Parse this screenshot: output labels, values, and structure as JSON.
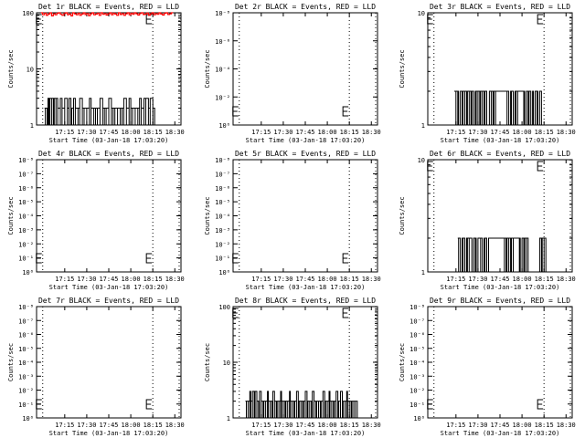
{
  "chart_data": [
    {
      "type": "line",
      "title": "Det 1r BLACK = Events, RED = LLD",
      "xlabel": "Start Time (03-Jan-18 17:03:20)",
      "ylabel": "Counts/sec",
      "x_ticks": [
        "17:15",
        "17:30",
        "17:45",
        "18:00",
        "18:15",
        "18:30"
      ],
      "y_scale": "log",
      "y_ticks": [
        "1",
        "10",
        "100"
      ],
      "ylim": [
        1,
        100
      ],
      "series": [
        {
          "color": "#000000",
          "x": [
            17.02,
            17.03,
            17.05,
            17.06,
            17.07,
            17.08,
            17.1,
            17.12,
            17.13,
            17.15,
            17.17,
            17.2,
            17.22,
            17.25,
            17.28,
            17.3,
            17.32,
            17.33,
            17.35,
            17.37,
            17.4,
            17.42,
            17.45,
            17.47,
            17.5,
            17.53,
            17.55,
            17.58,
            17.6,
            17.62,
            17.65,
            17.68,
            17.7,
            17.72,
            17.75,
            17.78,
            17.8,
            17.82,
            17.85,
            17.88,
            17.9,
            17.92,
            17.95,
            17.98,
            18.0,
            18.02,
            18.05,
            18.08,
            18.1,
            18.12,
            18.15,
            18.17,
            18.2,
            18.22,
            18.25
          ],
          "values": [
            2,
            2,
            2,
            3,
            3,
            3,
            3,
            3,
            3,
            3,
            2,
            3,
            2,
            3,
            2,
            3,
            2,
            2,
            3,
            2,
            2,
            3,
            2,
            2,
            2,
            3,
            2,
            2,
            2,
            2,
            3,
            2,
            2,
            2,
            3,
            2,
            2,
            2,
            2,
            2,
            2,
            3,
            2,
            3,
            2,
            2,
            2,
            2,
            3,
            2,
            3,
            3,
            2,
            3,
            2
          ]
        },
        {
          "color": "#ff0000",
          "x": [
            16.98,
            17.0,
            17.02,
            17.04,
            17.06,
            17.08,
            17.1,
            17.12,
            17.14,
            17.16,
            17.18,
            17.2,
            17.22,
            17.24,
            17.26,
            17.28,
            17.3,
            17.32,
            17.34,
            17.36,
            17.38,
            17.4,
            17.42,
            17.44,
            17.46,
            17.48,
            17.5,
            17.52,
            17.54,
            17.56,
            17.58,
            17.6,
            17.62,
            17.64,
            17.66,
            17.68,
            17.7,
            17.72,
            17.74,
            17.76,
            17.78,
            17.8,
            17.82,
            17.84,
            17.86,
            17.88,
            17.9,
            17.92,
            17.94,
            17.96,
            17.98,
            18.0,
            18.02,
            18.04,
            18.06,
            18.08,
            18.1,
            18.12,
            18.14,
            18.16,
            18.18,
            18.2,
            18.22,
            18.24,
            18.26,
            18.28,
            18.3,
            18.32,
            18.34,
            18.36,
            18.38,
            18.4,
            18.42,
            18.44,
            18.46
          ],
          "values": [
            100,
            92,
            98,
            90,
            95,
            100,
            88,
            96,
            92,
            98,
            100,
            94,
            90,
            97,
            100,
            92,
            95,
            88,
            100,
            96,
            92,
            98,
            90,
            95,
            100,
            93,
            97,
            89,
            96,
            100,
            92,
            95,
            98,
            90,
            100,
            94,
            97,
            91,
            96,
            100,
            92,
            98,
            95,
            90,
            100,
            93,
            97,
            90,
            96,
            100,
            92,
            98,
            94,
            100,
            96,
            91,
            97,
            100,
            93,
            95,
            99,
            90,
            96,
            100,
            92,
            97,
            94,
            100,
            95,
            91,
            98,
            100,
            93,
            96,
            100
          ]
        }
      ]
    },
    {
      "type": "line",
      "title": "Det 2r BLACK = Events, RED = LLD",
      "xlabel": "Start Time (03-Jan-18 17:03:20)",
      "ylabel": "Counts/sec",
      "x_ticks": [
        "17:15",
        "17:30",
        "17:45",
        "18:00",
        "18:15",
        "18:30"
      ],
      "y_scale": "log",
      "y_ticks": [
        "10⁰",
        "10⁻²",
        "10⁻⁴",
        "10⁻⁶",
        "10⁻⁸"
      ],
      "series": []
    },
    {
      "type": "line",
      "title": "Det 3r BLACK = Events, RED = LLD",
      "xlabel": "Start Time (03-Jan-18 17:03:20)",
      "ylabel": "Counts/sec",
      "x_ticks": [
        "17:15",
        "17:30",
        "17:45",
        "18:00",
        "18:15",
        "18:30"
      ],
      "y_scale": "log",
      "y_ticks": [
        "1",
        "10"
      ],
      "ylim": [
        1,
        10
      ],
      "series": [
        {
          "color": "#000000",
          "x": [
            17.23,
            17.25,
            17.27,
            17.28,
            17.3,
            17.32,
            17.33,
            17.35,
            17.37,
            17.38,
            17.4,
            17.42,
            17.43,
            17.45,
            17.47,
            17.48,
            17.5,
            17.52,
            17.53,
            17.55,
            17.57,
            17.58,
            17.6,
            17.63,
            17.65,
            17.67,
            17.68,
            17.7,
            17.83,
            17.85,
            17.87,
            17.88,
            17.9,
            17.92,
            17.93,
            17.95,
            18.02,
            18.03,
            18.05,
            18.07,
            18.08,
            18.1,
            18.12,
            18.13,
            18.15,
            18.17,
            18.18,
            18.2
          ],
          "values": [
            2,
            2,
            2,
            1,
            2,
            1,
            2,
            2,
            1,
            2,
            2,
            1,
            2,
            1,
            2,
            2,
            2,
            1,
            2,
            2,
            1,
            2,
            1,
            2,
            2,
            1,
            2,
            2,
            2,
            1,
            2,
            2,
            1,
            2,
            2,
            2,
            2,
            1,
            2,
            2,
            2,
            1,
            2,
            1,
            2,
            2,
            1,
            2
          ]
        }
      ]
    },
    {
      "type": "line",
      "title": "Det 4r BLACK = Events, RED = LLD",
      "xlabel": "Start Time (03-Jan-18 17:03:20)",
      "ylabel": "Counts/sec",
      "x_ticks": [
        "17:15",
        "17:30",
        "17:45",
        "18:00",
        "18:15",
        "18:30"
      ],
      "y_scale": "log",
      "y_ticks": [
        "10⁰",
        "10⁻¹",
        "10⁻²",
        "10⁻³",
        "10⁻⁴",
        "10⁻⁵",
        "10⁻⁶",
        "10⁻⁷",
        "10⁻⁸"
      ],
      "series": []
    },
    {
      "type": "line",
      "title": "Det 5r BLACK = Events, RED = LLD",
      "xlabel": "Start Time (03-Jan-18 17:03:20)",
      "ylabel": "Counts/sec",
      "x_ticks": [
        "17:15",
        "17:30",
        "17:45",
        "18:00",
        "18:15",
        "18:30"
      ],
      "y_scale": "log",
      "y_ticks": [
        "10⁰",
        "10⁻¹",
        "10⁻²",
        "10⁻³",
        "10⁻⁴",
        "10⁻⁵",
        "10⁻⁶",
        "10⁻⁷",
        "10⁻⁸"
      ],
      "series": []
    },
    {
      "type": "line",
      "title": "Det 6r BLACK = Events, RED = LLD",
      "xlabel": "Start Time (03-Jan-18 17:03:20)",
      "ylabel": "Counts/sec",
      "x_ticks": [
        "17:15",
        "17:30",
        "17:45",
        "18:00",
        "18:15",
        "18:30"
      ],
      "y_scale": "log",
      "y_ticks": [
        "1",
        "10"
      ],
      "ylim": [
        1,
        10
      ],
      "series": [
        {
          "color": "#000000",
          "x": [
            17.27,
            17.28,
            17.3,
            17.32,
            17.33,
            17.35,
            17.37,
            17.38,
            17.4,
            17.43,
            17.45,
            17.47,
            17.48,
            17.5,
            17.53,
            17.55,
            17.57,
            17.58,
            17.6,
            17.62,
            17.8,
            17.82,
            17.83,
            17.85,
            17.87,
            17.88,
            17.9,
            17.97,
            17.98,
            18.0,
            18.02,
            18.03,
            18.05,
            18.07,
            18.2,
            18.22,
            18.23,
            18.25
          ],
          "values": [
            2,
            2,
            1,
            2,
            2,
            1,
            2,
            2,
            2,
            1,
            2,
            2,
            1,
            2,
            2,
            1,
            2,
            2,
            1,
            2,
            2,
            1,
            2,
            2,
            1,
            2,
            2,
            2,
            1,
            2,
            1,
            2,
            2,
            1,
            2,
            1,
            2,
            2
          ]
        }
      ]
    },
    {
      "type": "line",
      "title": "Det 7r BLACK = Events, RED = LLD",
      "xlabel": "Start Time (03-Jan-18 17:03:20)",
      "ylabel": "Counts/sec",
      "x_ticks": [
        "17:15",
        "17:30",
        "17:45",
        "18:00",
        "18:15",
        "18:30"
      ],
      "y_scale": "log",
      "y_ticks": [
        "10⁰",
        "10⁻¹",
        "10⁻²",
        "10⁻³",
        "10⁻⁴",
        "10⁻⁵",
        "10⁻⁶",
        "10⁻⁷",
        "10⁻⁸"
      ],
      "series": []
    },
    {
      "type": "line",
      "title": "Det 8r BLACK = Events, RED = LLD",
      "xlabel": "Start Time (03-Jan-18 17:03:20)",
      "ylabel": "Counts/sec",
      "x_ticks": [
        "17:15",
        "17:30",
        "17:45",
        "18:00",
        "18:15",
        "18:30"
      ],
      "y_scale": "log",
      "y_ticks": [
        "1",
        "10",
        "100"
      ],
      "ylim": [
        1,
        100
      ],
      "series": [
        {
          "color": "#000000",
          "x": [
            17.07,
            17.08,
            17.1,
            17.12,
            17.13,
            17.15,
            17.17,
            17.18,
            17.2,
            17.22,
            17.23,
            17.25,
            17.27,
            17.28,
            17.3,
            17.32,
            17.33,
            17.35,
            17.37,
            17.38,
            17.4,
            17.42,
            17.43,
            17.45,
            17.47,
            17.48,
            17.5,
            17.52,
            17.53,
            17.55,
            17.57,
            17.58,
            17.6,
            17.62,
            17.63,
            17.65,
            17.67,
            17.68,
            17.7,
            17.72,
            17.73,
            17.75,
            17.77,
            17.78,
            17.8,
            17.82,
            17.83,
            17.85,
            17.87,
            17.88,
            17.9,
            17.92,
            17.93,
            17.95,
            17.97,
            17.98,
            18.0,
            18.02,
            18.03,
            18.05,
            18.07,
            18.08,
            18.1,
            18.12,
            18.13,
            18.15,
            18.17,
            18.18,
            18.2,
            18.22,
            18.23,
            18.25,
            18.27,
            18.28,
            18.3,
            18.32
          ],
          "values": [
            2,
            2,
            2,
            3,
            2,
            3,
            2,
            3,
            2,
            2,
            3,
            2,
            2,
            2,
            2,
            3,
            2,
            2,
            2,
            3,
            2,
            2,
            2,
            2,
            3,
            2,
            2,
            2,
            2,
            2,
            3,
            2,
            2,
            2,
            2,
            3,
            2,
            2,
            2,
            2,
            2,
            3,
            2,
            2,
            2,
            2,
            3,
            2,
            2,
            2,
            2,
            2,
            2,
            3,
            2,
            2,
            2,
            3,
            2,
            2,
            2,
            2,
            3,
            2,
            2,
            3,
            2,
            2,
            2,
            3,
            2,
            2,
            2,
            2,
            2,
            2
          ]
        }
      ]
    },
    {
      "type": "line",
      "title": "Det 9r BLACK = Events, RED = LLD",
      "xlabel": "Start Time (03-Jan-18 17:03:20)",
      "ylabel": "Counts/sec",
      "x_ticks": [
        "17:15",
        "17:30",
        "17:45",
        "18:00",
        "18:15",
        "18:30"
      ],
      "y_scale": "log",
      "y_ticks": [
        "10⁰",
        "10⁻¹",
        "10⁻²",
        "10⁻³",
        "10⁻⁴",
        "10⁻⁵",
        "10⁻⁶",
        "10⁻⁷",
        "10⁻⁸"
      ],
      "series": []
    }
  ]
}
